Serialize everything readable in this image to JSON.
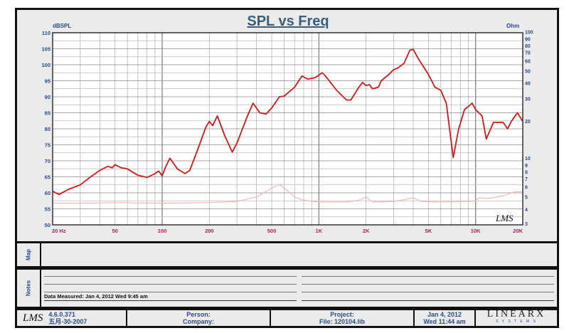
{
  "chart_data": {
    "type": "line",
    "title": "SPL vs Freq",
    "ylabel": "dBSPL",
    "y2label": "Ohm",
    "xscale": "log",
    "xlim": [
      20,
      20000
    ],
    "ylim": [
      50,
      110
    ],
    "y2lim": [
      3,
      100
    ],
    "y2scale": "log",
    "grid": true,
    "xticks": [
      {
        "v": 20,
        "l": "20  Hz"
      },
      {
        "v": 50,
        "l": "50"
      },
      {
        "v": 100,
        "l": "100"
      },
      {
        "v": 200,
        "l": "200"
      },
      {
        "v": 500,
        "l": "500"
      },
      {
        "v": 1000,
        "l": "1K"
      },
      {
        "v": 2000,
        "l": "2K"
      },
      {
        "v": 5000,
        "l": "5K"
      },
      {
        "v": 10000,
        "l": "10K"
      },
      {
        "v": 20000,
        "l": "20K"
      }
    ],
    "yticks": [
      50,
      55,
      60,
      65,
      70,
      75,
      80,
      85,
      90,
      95,
      100,
      105,
      110
    ],
    "y2ticks": [
      3,
      4,
      5,
      6,
      7,
      8,
      9,
      10,
      20,
      30,
      40,
      50,
      60,
      70,
      80,
      90,
      100
    ],
    "series": [
      {
        "name": "SPL",
        "color": "#d01818",
        "axis": "left",
        "x": [
          20,
          22,
          25,
          30,
          35,
          40,
          45,
          48,
          50,
          55,
          60,
          70,
          80,
          90,
          95,
          100,
          105,
          112,
          125,
          140,
          150,
          170,
          190,
          200,
          210,
          225,
          250,
          280,
          300,
          350,
          380,
          420,
          460,
          500,
          560,
          600,
          700,
          780,
          850,
          950,
          1050,
          1100,
          1300,
          1500,
          1600,
          1800,
          1900,
          2000,
          2100,
          2200,
          2400,
          2500,
          2800,
          3000,
          3200,
          3500,
          3800,
          4000,
          4300,
          5000,
          5500,
          6000,
          6500,
          7200,
          7800,
          8500,
          9000,
          9500,
          10000,
          11000,
          11700,
          13000,
          15000,
          16000,
          17000,
          18500,
          20000
        ],
        "y": [
          60.5,
          59.5,
          61,
          62.5,
          65,
          67,
          68.3,
          67.8,
          68.8,
          67.8,
          67.5,
          65.5,
          64.8,
          66,
          66.8,
          65.3,
          68,
          70.8,
          67.5,
          66,
          67,
          74,
          80.5,
          82.3,
          81,
          84,
          78,
          72.7,
          75.5,
          84,
          88,
          85,
          84.6,
          86.5,
          90,
          90.2,
          93,
          96.5,
          95.5,
          96,
          97.5,
          96.5,
          92,
          89,
          89,
          93,
          94.5,
          93.5,
          93.8,
          92.5,
          93,
          95,
          97,
          98.5,
          99,
          100.5,
          104.5,
          104.8,
          102,
          97,
          93,
          92,
          88,
          71,
          80,
          86,
          87,
          88,
          86,
          84,
          76.8,
          82,
          82,
          80,
          82.5,
          85,
          82.3
        ]
      },
      {
        "name": "Impedance",
        "color": "#f0b8b8",
        "axis": "right",
        "x": [
          20,
          30,
          50,
          100,
          200,
          300,
          400,
          480,
          560,
          620,
          700,
          800,
          1000,
          1500,
          1800,
          2000,
          2200,
          3000,
          3500,
          4000,
          4500,
          6000,
          9000,
          10000,
          10500,
          12000,
          15000,
          18000,
          20000
        ],
        "y": [
          4.45,
          4.45,
          4.5,
          4.45,
          4.5,
          4.6,
          5.0,
          5.7,
          6.3,
          5.7,
          5.0,
          4.7,
          4.55,
          4.55,
          4.7,
          5.0,
          4.55,
          4.6,
          4.75,
          4.9,
          4.6,
          4.55,
          4.6,
          4.65,
          4.9,
          4.85,
          5.1,
          5.5,
          5.5
        ]
      }
    ]
  },
  "watermark": "LMS",
  "map_label": "Map",
  "notes": {
    "label": "Notes",
    "measured": "Data Measured: Jan 4, 2012  Wed  9:45 am"
  },
  "footer": {
    "logo": "LMS",
    "version": "4.6.0.371",
    "version_date": "五月-30-2007",
    "person": "Person:",
    "company": "Company:",
    "project": "Project:",
    "file": "File: 120104.lib",
    "date": "Jan  4, 2012",
    "time": "Wed 11:44 am",
    "brand": "LINEARX",
    "brand_sub": "S  Y  S  T  E  M  S"
  }
}
